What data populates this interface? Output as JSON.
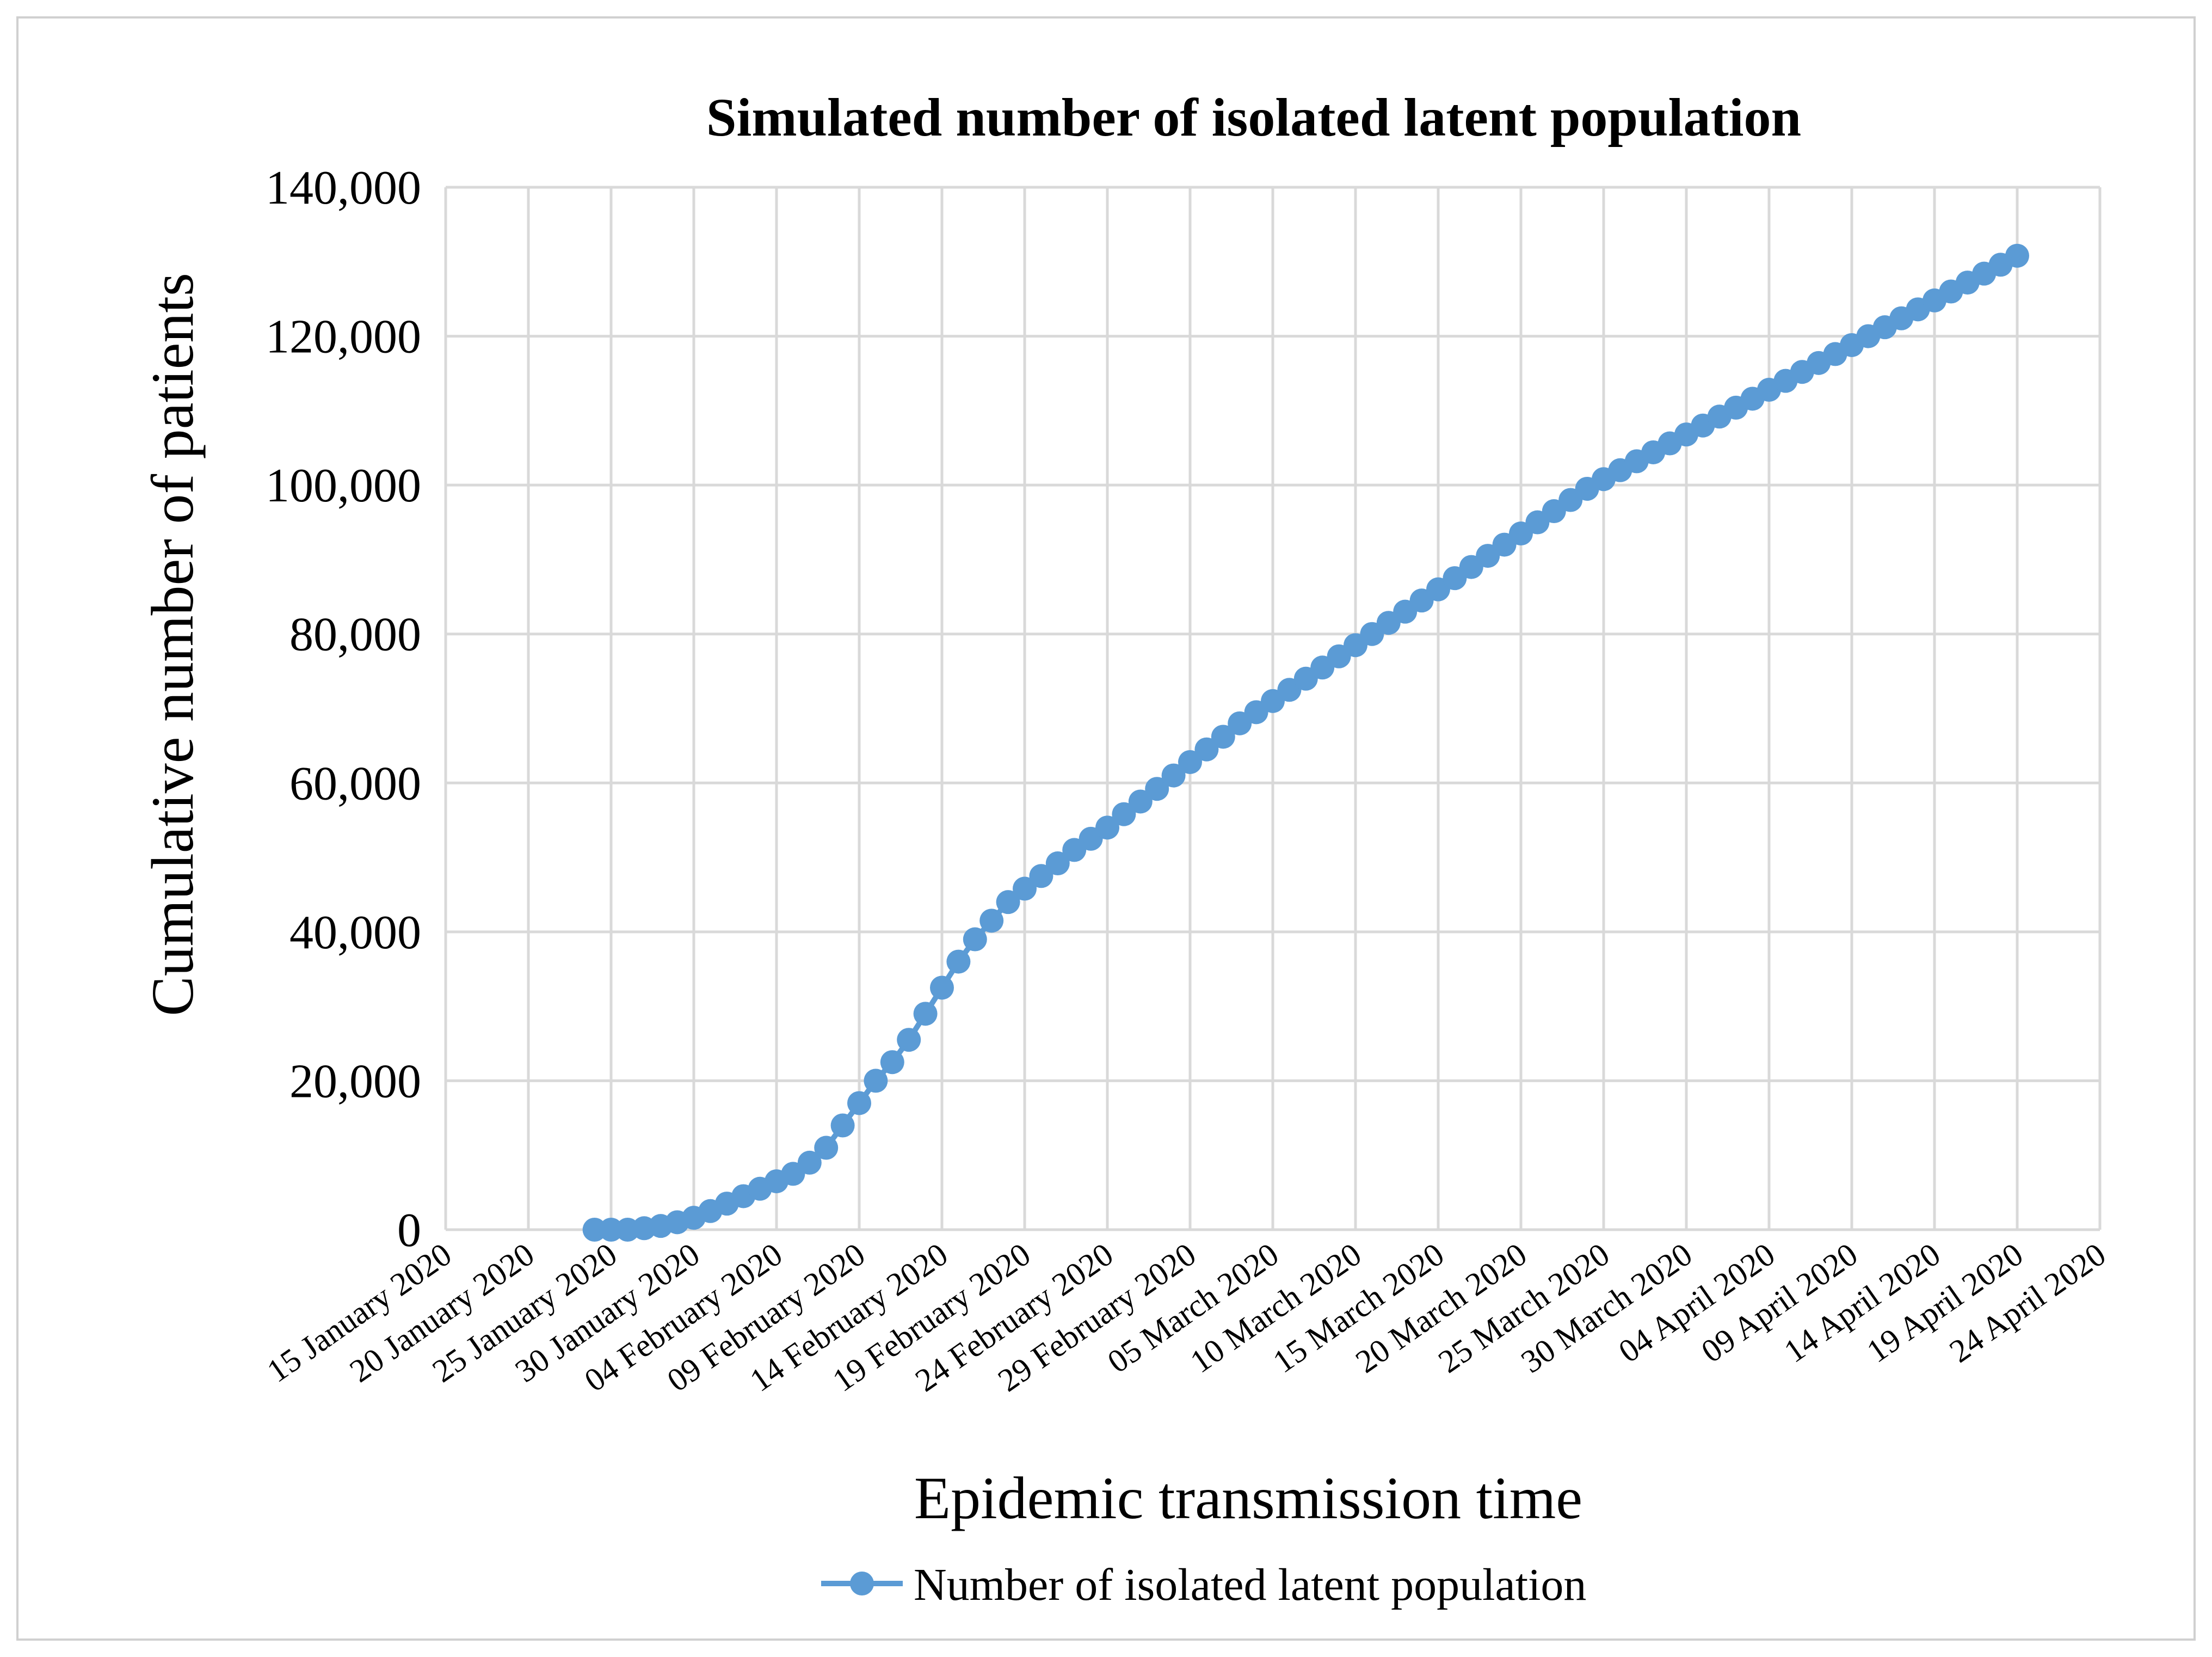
{
  "chart_data": {
    "type": "line",
    "title": "Simulated number of isolated latent population",
    "xlabel": "Epidemic transmission time",
    "ylabel": "Cumulative number of patients",
    "ylim": [
      0,
      140000
    ],
    "yticks": [
      "0",
      "20,000",
      "40,000",
      "60,000",
      "80,000",
      "100,000",
      "120,000",
      "140,000"
    ],
    "ytick_values": [
      0,
      20000,
      40000,
      60000,
      80000,
      100000,
      120000,
      140000
    ],
    "xticks": [
      "15 January 2020",
      "20 January 2020",
      "25 January 2020",
      "30 January 2020",
      "04 February 2020",
      "09 February 2020",
      "14 February 2020",
      "19 February 2020",
      "24 February 2020",
      "29 February 2020",
      "05 March 2020",
      "10 March 2020",
      "15 March 2020",
      "20 March 2020",
      "25 March 2020",
      "30 March 2020",
      "04 April 2020",
      "09 April 2020",
      "14 April 2020",
      "19 April 2020",
      "24 April 2020"
    ],
    "x_start_label": "24 January 2020",
    "x_day_offset_start": 9,
    "x_range_days": [
      0,
      100
    ],
    "grid": true,
    "legend_position": "bottom",
    "series": [
      {
        "name": "Number of isolated latent population",
        "color": "#5b9bd5",
        "values": [
          0,
          0,
          0,
          200,
          500,
          1000,
          1600,
          2500,
          3500,
          4500,
          5500,
          6500,
          7500,
          9000,
          11000,
          14000,
          17000,
          20000,
          22500,
          25500,
          29000,
          32500,
          36000,
          39000,
          41500,
          44000,
          45800,
          47500,
          49200,
          51000,
          52500,
          54000,
          55800,
          57500,
          59200,
          61000,
          62800,
          64500,
          66200,
          68000,
          69500,
          71000,
          72500,
          74000,
          75500,
          77000,
          78500,
          80000,
          81500,
          83000,
          84500,
          86000,
          87500,
          89000,
          90500,
          92000,
          93500,
          95000,
          96500,
          98000,
          99500,
          100800,
          102000,
          103200,
          104400,
          105600,
          106800,
          108000,
          109200,
          110400,
          111600,
          112800,
          114000,
          115200,
          116400,
          117600,
          118800,
          120000,
          121200,
          122400,
          123600,
          124800,
          126000,
          127200,
          128400,
          129600,
          130800
        ]
      }
    ]
  }
}
